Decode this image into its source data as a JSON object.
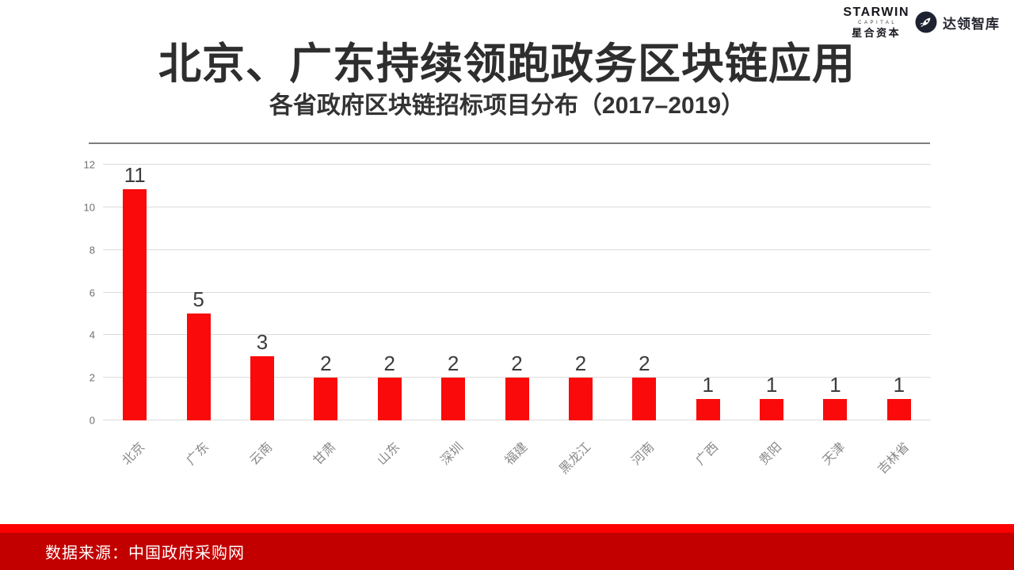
{
  "title": "北京、广东持续领跑政务区块链应用",
  "subtitle": "各省政府区块链招标项目分布（2017–2019）",
  "logo": {
    "starwin": "STARWIN",
    "capital": "CAPITAL",
    "starwin_cn": "星合资本",
    "icon": "rocket-icon",
    "partner": "达领智库"
  },
  "chart_data": {
    "type": "bar",
    "title": "各省政府区块链招标项目分布（2017–2019）",
    "categories": [
      "北京",
      "广东",
      "云南",
      "甘肃",
      "山东",
      "深圳",
      "福建",
      "黑龙江",
      "河南",
      "广西",
      "贵阳",
      "天津",
      "吉林省"
    ],
    "values": [
      11,
      5,
      3,
      2,
      2,
      2,
      2,
      2,
      2,
      1,
      1,
      1,
      1
    ],
    "xlabel": "",
    "ylabel": "",
    "ylim": [
      0,
      12
    ],
    "yticks": [
      0,
      2,
      4,
      6,
      8,
      10,
      12
    ],
    "grid": true,
    "legend": "none",
    "bar_color": "#fa0a0a",
    "value_label_color": "#3d3d3d"
  },
  "footer": {
    "source_label": "数据来源：中国政府采购网"
  },
  "colors": {
    "bar": "#fa0a0a",
    "footer_strip": "#fe0000",
    "footer_bg": "#c20000",
    "title_text": "#2e2e2e",
    "axis_tick_text": "#6f6f6f",
    "x_label_text": "#8a8a8a",
    "gridline": "#dcdcdc",
    "divider": "#7c7c7c"
  }
}
